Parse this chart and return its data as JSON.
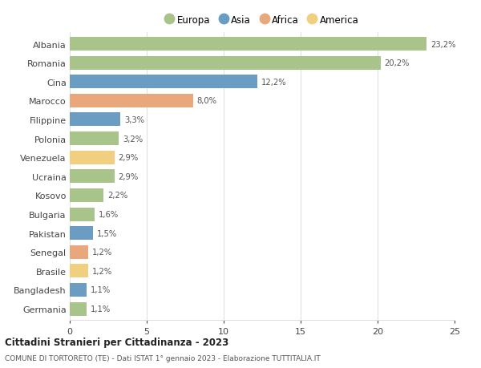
{
  "countries": [
    "Albania",
    "Romania",
    "Cina",
    "Marocco",
    "Filippine",
    "Polonia",
    "Venezuela",
    "Ucraina",
    "Kosovo",
    "Bulgaria",
    "Pakistan",
    "Senegal",
    "Brasile",
    "Bangladesh",
    "Germania"
  ],
  "values": [
    23.2,
    20.2,
    12.2,
    8.0,
    3.3,
    3.2,
    2.9,
    2.9,
    2.2,
    1.6,
    1.5,
    1.2,
    1.2,
    1.1,
    1.1
  ],
  "labels": [
    "23,2%",
    "20,2%",
    "12,2%",
    "8,0%",
    "3,3%",
    "3,2%",
    "2,9%",
    "2,9%",
    "2,2%",
    "1,6%",
    "1,5%",
    "1,2%",
    "1,2%",
    "1,1%",
    "1,1%"
  ],
  "continents": [
    "Europa",
    "Europa",
    "Asia",
    "Africa",
    "Asia",
    "Europa",
    "America",
    "Europa",
    "Europa",
    "Europa",
    "Asia",
    "Africa",
    "America",
    "Asia",
    "Europa"
  ],
  "colors": {
    "Europa": "#a8c48a",
    "Asia": "#6b9dc2",
    "Africa": "#e8a87c",
    "America": "#f0d080"
  },
  "legend_order": [
    "Europa",
    "Asia",
    "Africa",
    "America"
  ],
  "title": "Cittadini Stranieri per Cittadinanza - 2023",
  "subtitle": "COMUNE DI TORTORETO (TE) - Dati ISTAT 1° gennaio 2023 - Elaborazione TUTTITALIA.IT",
  "xlim": [
    0,
    25
  ],
  "xticks": [
    0,
    5,
    10,
    15,
    20,
    25
  ],
  "background_color": "#ffffff",
  "grid_color": "#e0e0e0"
}
